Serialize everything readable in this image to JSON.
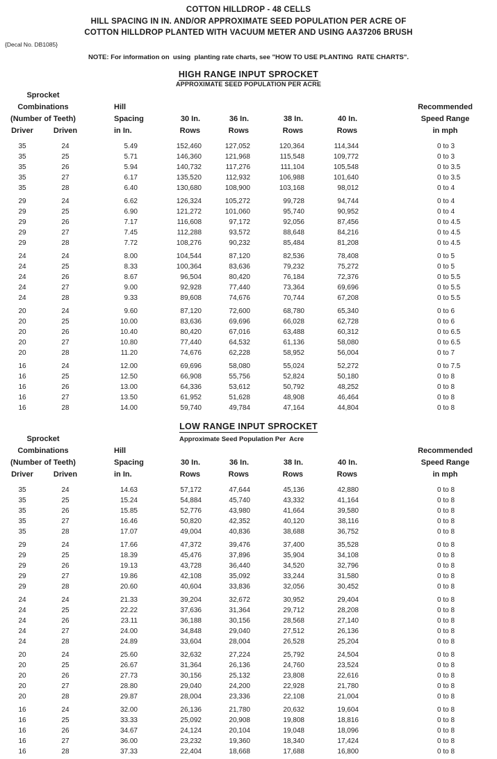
{
  "header": {
    "title_lines": [
      "COTTON HILLDROP - 48 CELLS",
      "HILL SPACING IN IN. AND/OR APPROXIMATE SEED POPULATION PER ACRE OF",
      "COTTON HILLDROP PLANTED WITH VACUUM METER AND USING AA37206 BRUSH"
    ],
    "decal": "{Decal No. DB1085}",
    "note": "NOTE: For information on  using  planting rate charts, see \"HOW TO USE PLANTING  RATE CHARTS\"."
  },
  "table": {
    "left_header_lines": [
      "Sprocket",
      "Combinations",
      "(Number of Teeth)"
    ],
    "driver_label": "Driver",
    "driven_label": "Driven",
    "hill_lines": [
      "Hill",
      "Spacing",
      "in In."
    ],
    "row_width_labels": [
      "30 In.",
      "36 In.",
      "38 In.",
      "40 In."
    ],
    "rows_label": "Rows",
    "speed_lines": [
      "Recommended",
      "Speed Range",
      "in mph"
    ]
  },
  "sections": [
    {
      "id": "high-range",
      "title": "HIGH RANGE INPUT SPROCKET",
      "subtitle": "APPROXIMATE SEED POPULATION PER ACRE",
      "subtitle_centered": true,
      "groups": [
        {
          "rows": [
            [
              "35",
              "24",
              "5.49",
              "152,460",
              "127,052",
              "120,364",
              "114,344",
              "0 to 3"
            ],
            [
              "35",
              "25",
              "5.71",
              "146,360",
              "121,968",
              "115,548",
              "109,772",
              "0 to 3"
            ],
            [
              "35",
              "26",
              "5.94",
              "140,732",
              "117,276",
              "111,104",
              "105,548",
              "0 to 3.5"
            ],
            [
              "35",
              "27",
              "6.17",
              "135,520",
              "112,932",
              "106,988",
              "101,640",
              "0 to 3.5"
            ],
            [
              "35",
              "28",
              "6.40",
              "130,680",
              "108,900",
              "103,168",
              "98,012",
              "0 to 4"
            ]
          ]
        },
        {
          "rows": [
            [
              "29",
              "24",
              "6.62",
              "126,324",
              "105,272",
              "99,728",
              "94,744",
              "0 to 4"
            ],
            [
              "29",
              "25",
              "6.90",
              "121,272",
              "101,060",
              "95,740",
              "90,952",
              "0 to 4"
            ],
            [
              "29",
              "26",
              "7.17",
              "116,608",
              "97,172",
              "92,056",
              "87,456",
              "0 to 4.5"
            ],
            [
              "29",
              "27",
              "7.45",
              "112,288",
              "93,572",
              "88,648",
              "84,216",
              "0 to 4.5"
            ],
            [
              "29",
              "28",
              "7.72",
              "108,276",
              "90,232",
              "85,484",
              "81,208",
              "0 to 4.5"
            ]
          ]
        },
        {
          "rows": [
            [
              "24",
              "24",
              "8.00",
              "104,544",
              "87,120",
              "82,536",
              "78,408",
              "0 to 5"
            ],
            [
              "24",
              "25",
              "8.33",
              "100,364",
              "83,636",
              "79,232",
              "75,272",
              "0 to 5"
            ],
            [
              "24",
              "26",
              "8.67",
              "96,504",
              "80,420",
              "76,184",
              "72,376",
              "0 to 5.5"
            ],
            [
              "24",
              "27",
              "9.00",
              "92,928",
              "77,440",
              "73,364",
              "69,696",
              "0 to 5.5"
            ],
            [
              "24",
              "28",
              "9.33",
              "89,608",
              "74,676",
              "70,744",
              "67,208",
              "0 to 5.5"
            ]
          ]
        },
        {
          "rows": [
            [
              "20",
              "24",
              "9.60",
              "87,120",
              "72,600",
              "68,780",
              "65,340",
              "0 to 6"
            ],
            [
              "20",
              "25",
              "10.00",
              "83,636",
              "69,696",
              "66,028",
              "62,728",
              "0 to 6"
            ],
            [
              "20",
              "26",
              "10.40",
              "80,420",
              "67,016",
              "63,488",
              "60,312",
              "0 to 6.5"
            ],
            [
              "20",
              "27",
              "10.80",
              "77,440",
              "64,532",
              "61,136",
              "58,080",
              "0 to 6.5"
            ],
            [
              "20",
              "28",
              "11.20",
              "74,676",
              "62,228",
              "58,952",
              "56,004",
              "0 to 7"
            ]
          ]
        },
        {
          "rows": [
            [
              "16",
              "24",
              "12.00",
              "69,696",
              "58,080",
              "55,024",
              "52,272",
              "0 to 7.5"
            ],
            [
              "16",
              "25",
              "12.50",
              "66,908",
              "55,756",
              "52,824",
              "50,180",
              "0 to 8"
            ],
            [
              "16",
              "26",
              "13.00",
              "64,336",
              "53,612",
              "50,792",
              "48,252",
              "0 to 8"
            ],
            [
              "16",
              "27",
              "13.50",
              "61,952",
              "51,628",
              "48,908",
              "46,464",
              "0 to 8"
            ],
            [
              "16",
              "28",
              "14.00",
              "59,740",
              "49,784",
              "47,164",
              "44,804",
              "0 to 8"
            ]
          ]
        }
      ]
    },
    {
      "id": "low-range",
      "title": "LOW RANGE INPUT SPROCKET",
      "subtitle": "Approximate Seed Population Per  Acre",
      "subtitle_centered": false,
      "groups": [
        {
          "rows": [
            [
              "35",
              "24",
              "14.63",
              "57,172",
              "47,644",
              "45,136",
              "42,880",
              "0 to 8"
            ],
            [
              "35",
              "25",
              "15.24",
              "54,884",
              "45,740",
              "43,332",
              "41,164",
              "0 to 8"
            ],
            [
              "35",
              "26",
              "15.85",
              "52,776",
              "43,980",
              "41,664",
              "39,580",
              "0 to 8"
            ],
            [
              "35",
              "27",
              "16.46",
              "50,820",
              "42,352",
              "40,120",
              "38,116",
              "0 to 8"
            ],
            [
              "35",
              "28",
              "17.07",
              "49,004",
              "40,836",
              "38,688",
              "36,752",
              "0 to 8"
            ]
          ]
        },
        {
          "rows": [
            [
              "29",
              "24",
              "17.66",
              "47,372",
              "39,476",
              "37,400",
              "35,528",
              "0 to 8"
            ],
            [
              "29",
              "25",
              "18.39",
              "45,476",
              "37,896",
              "35,904",
              "34,108",
              "0 to 8"
            ],
            [
              "29",
              "26",
              "19.13",
              "43,728",
              "36,440",
              "34,520",
              "32,796",
              "0 to 8"
            ],
            [
              "29",
              "27",
              "19.86",
              "42,108",
              "35,092",
              "33,244",
              "31,580",
              "0 to 8"
            ],
            [
              "29",
              "28",
              "20.60",
              "40,604",
              "33,836",
              "32,056",
              "30,452",
              "0 to 8"
            ]
          ]
        },
        {
          "rows": [
            [
              "24",
              "24",
              "21.33",
              "39,204",
              "32,672",
              "30,952",
              "29,404",
              "0 to 8"
            ],
            [
              "24",
              "25",
              "22.22",
              "37,636",
              "31,364",
              "29,712",
              "28,208",
              "0 to 8"
            ],
            [
              "24",
              "26",
              "23.11",
              "36,188",
              "30,156",
              "28,568",
              "27,140",
              "0 to 8"
            ],
            [
              "24",
              "27",
              "24.00",
              "34,848",
              "29,040",
              "27,512",
              "26,136",
              "0 to 8"
            ],
            [
              "24",
              "28",
              "24.89",
              "33,604",
              "28,004",
              "26,528",
              "25,204",
              "0 to 8"
            ]
          ]
        },
        {
          "rows": [
            [
              "20",
              "24",
              "25.60",
              "32,632",
              "27,224",
              "25,792",
              "24,504",
              "0 to 8"
            ],
            [
              "20",
              "25",
              "26.67",
              "31,364",
              "26,136",
              "24,760",
              "23,524",
              "0 to 8"
            ],
            [
              "20",
              "26",
              "27.73",
              "30,156",
              "25,132",
              "23,808",
              "22,616",
              "0 to 8"
            ],
            [
              "20",
              "27",
              "28.80",
              "29,040",
              "24,200",
              "22,928",
              "21,780",
              "0 to 8"
            ],
            [
              "20",
              "28",
              "29.87",
              "28,004",
              "23,336",
              "22,108",
              "21,004",
              "0 to 8"
            ]
          ]
        },
        {
          "rows": [
            [
              "16",
              "24",
              "32.00",
              "26,136",
              "21,780",
              "20,632",
              "19,604",
              "0 to 8"
            ],
            [
              "16",
              "25",
              "33.33",
              "25,092",
              "20,908",
              "19,808",
              "18,816",
              "0 to 8"
            ],
            [
              "16",
              "26",
              "34.67",
              "24,124",
              "20,104",
              "19,048",
              "18,096",
              "0 to 8"
            ],
            [
              "16",
              "27",
              "36.00",
              "23,232",
              "19,360",
              "18,340",
              "17,424",
              "0 to 8"
            ],
            [
              "16",
              "28",
              "37.33",
              "22,404",
              "18,668",
              "17,688",
              "16,800",
              "0 to 8"
            ]
          ]
        }
      ]
    }
  ]
}
